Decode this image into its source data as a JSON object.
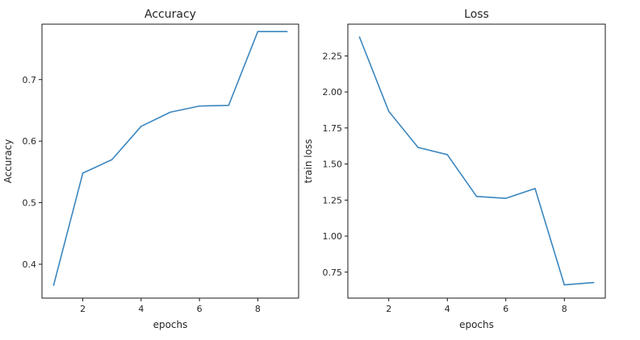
{
  "chart_data": [
    {
      "type": "line",
      "title": "Accuracy",
      "xlabel": "epochs",
      "ylabel": "Accuracy",
      "x": [
        1,
        2,
        3,
        4,
        5,
        6,
        7,
        8,
        9
      ],
      "series": [
        {
          "values": [
            0.366,
            0.548,
            0.57,
            0.624,
            0.647,
            0.657,
            0.658,
            0.778,
            0.778
          ],
          "color": "#3a86bf"
        }
      ],
      "xlim": [
        0.6,
        9.4
      ],
      "ylim": [
        0.345,
        0.79
      ],
      "xticks": [
        2,
        4,
        6,
        8
      ],
      "xtick_labels": [
        "2",
        "4",
        "6",
        "8"
      ],
      "yticks": [
        0.4,
        0.5,
        0.6,
        0.7
      ],
      "ytick_labels": [
        "0.4",
        "0.5",
        "0.6",
        "0.7"
      ],
      "grid": false
    },
    {
      "type": "line",
      "title": "Loss",
      "xlabel": "epochs",
      "ylabel": "train loss",
      "x": [
        1,
        2,
        3,
        4,
        5,
        6,
        7,
        8,
        9
      ],
      "series": [
        {
          "values": [
            2.38,
            1.865,
            1.615,
            1.565,
            1.275,
            1.262,
            1.33,
            0.662,
            0.678
          ],
          "color": "#3a86bf"
        }
      ],
      "xlim": [
        0.6,
        9.4
      ],
      "ylim": [
        0.57,
        2.47
      ],
      "xticks": [
        2,
        4,
        6,
        8
      ],
      "xtick_labels": [
        "2",
        "4",
        "6",
        "8"
      ],
      "yticks": [
        0.75,
        1.0,
        1.25,
        1.5,
        1.75,
        2.0,
        2.25
      ],
      "ytick_labels": [
        "0.75",
        "1.00",
        "1.25",
        "1.50",
        "1.75",
        "2.00",
        "2.25"
      ],
      "grid": false
    }
  ]
}
